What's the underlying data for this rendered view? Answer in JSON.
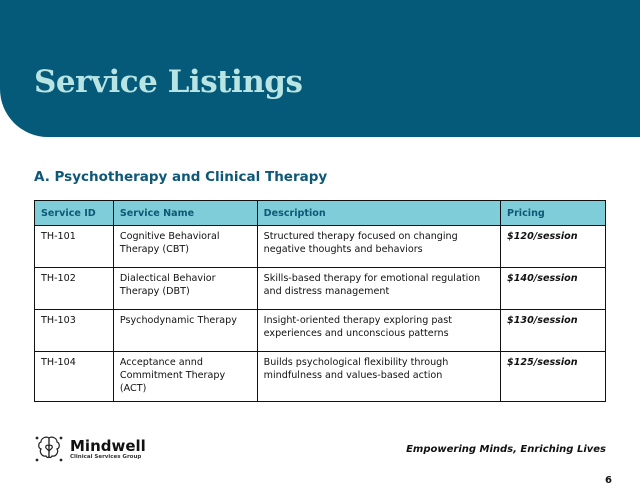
{
  "header": {
    "title": "Service Listings"
  },
  "section": {
    "title": "A. Psychotherapy and Clinical Therapy"
  },
  "table": {
    "columns": [
      "Service ID",
      "Service Name",
      "Description",
      "Pricing"
    ],
    "rows": [
      [
        "TH-101",
        "Cognitive Behavioral Therapy (CBT)",
        "Structured therapy focused on changing negative thoughts and behaviors",
        "$120/session"
      ],
      [
        "TH-102",
        "Dialectical Behavior Therapy (DBT)",
        "Skills-based therapy for emotional regulation and distress management",
        "$140/session"
      ],
      [
        "TH-103",
        "Psychodynamic Therapy",
        "Insight-oriented therapy exploring past experiences and unconscious patterns",
        "$130/session"
      ],
      [
        "TH-104",
        "Acceptance annd Commitment Therapy (ACT)",
        "Builds psychological flexibility through mindfulness and values-based action",
        "$125/session"
      ]
    ]
  },
  "footer": {
    "brand": "Mindwell",
    "brand_sub": "Clinical Services Group",
    "logo_icon": "brain-heart-icon",
    "tagline": "Empowering Minds, Enriching Lives",
    "page_number": "6"
  },
  "colors": {
    "header_bg": "#045a78",
    "title": "#b8e4e4",
    "table_header_bg": "#7fcdd8",
    "accent_text": "#0d5877"
  }
}
